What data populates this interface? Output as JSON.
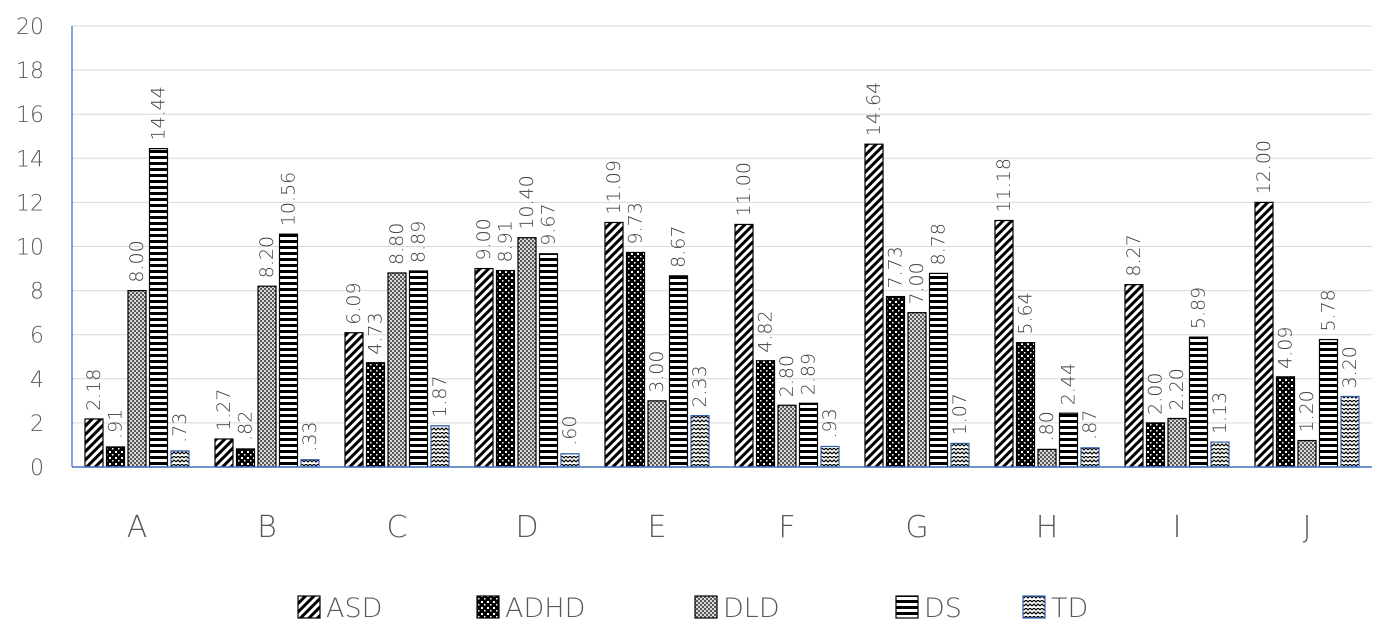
{
  "chart_data": {
    "type": "bar",
    "title": "",
    "xlabel": "",
    "ylabel": "",
    "categories": [
      "A",
      "B",
      "C",
      "D",
      "E",
      "F",
      "G",
      "H",
      "I",
      "J"
    ],
    "ylim": [
      0,
      20
    ],
    "yticks": [
      0,
      2,
      4,
      6,
      8,
      10,
      12,
      14,
      16,
      18,
      20
    ],
    "grid": true,
    "legend_position": "bottom",
    "series": [
      {
        "name": "ASD",
        "pattern": "diagonal-stripes",
        "color": "#000000",
        "values": [
          2.18,
          1.27,
          6.09,
          9.0,
          11.09,
          11.0,
          14.64,
          11.18,
          8.27,
          12.0
        ],
        "labels": [
          "2.18",
          "1.27",
          "6.09",
          "9.00",
          "11.09",
          "11.00",
          "14.64",
          "11.18",
          "8.27",
          "12.00"
        ]
      },
      {
        "name": "ADHD",
        "pattern": "dots-on-black",
        "color": "#000000",
        "values": [
          0.91,
          0.82,
          4.73,
          8.91,
          9.73,
          4.82,
          7.73,
          5.64,
          2.0,
          4.09
        ],
        "labels": [
          ".91",
          ".82",
          "4.73",
          "8.91",
          "9.73",
          "4.82",
          "7.73",
          "5.64",
          "2.00",
          "4.09"
        ]
      },
      {
        "name": "DLD",
        "pattern": "gray-checker",
        "color": "#7f7f7f",
        "values": [
          8.0,
          8.2,
          8.8,
          10.4,
          3.0,
          2.8,
          7.0,
          0.8,
          2.2,
          1.2
        ],
        "labels": [
          "8.00",
          "8.20",
          "8.80",
          "10.40",
          "3.00",
          "2.80",
          "7.00",
          ".80",
          "2.20",
          "1.20"
        ]
      },
      {
        "name": "DS",
        "pattern": "horizontal-stripes",
        "color": "#000000",
        "values": [
          14.44,
          10.56,
          8.89,
          9.67,
          8.67,
          2.89,
          8.78,
          2.44,
          5.89,
          5.78
        ],
        "labels": [
          "14.44",
          "10.56",
          "8.89",
          "9.67",
          "8.67",
          "2.89",
          "8.78",
          "2.44",
          "5.89",
          "5.78"
        ]
      },
      {
        "name": "TD",
        "pattern": "zigzag",
        "color": "#2e5ca8",
        "values": [
          0.73,
          0.33,
          1.87,
          0.6,
          2.33,
          0.93,
          1.07,
          0.87,
          1.13,
          3.2
        ],
        "labels": [
          ".73",
          ".33",
          "1.87",
          ".60",
          "2.33",
          ".93",
          "1.07",
          ".87",
          "1.13",
          "3.20"
        ]
      }
    ]
  }
}
